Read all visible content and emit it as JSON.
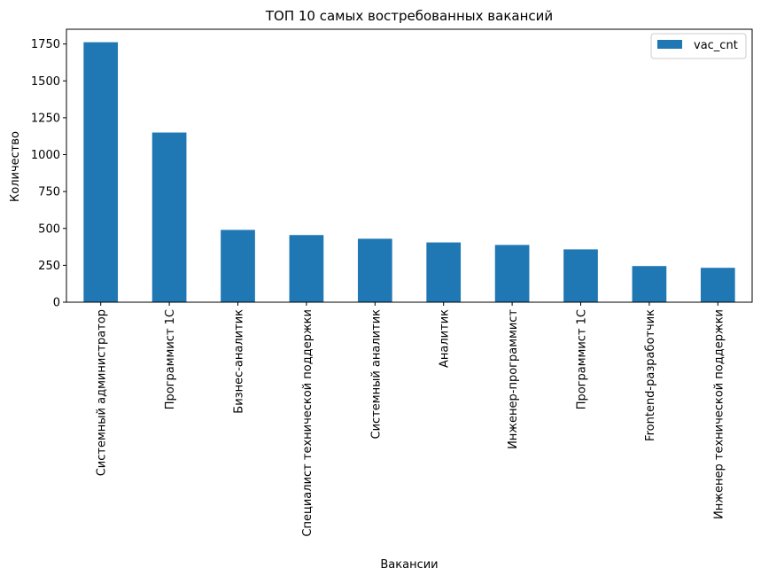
{
  "chart_data": {
    "type": "bar",
    "title": "ТОП 10 самых востребованных вакансий",
    "xlabel": "Вакансии",
    "ylabel": "Количество",
    "categories": [
      "Системный администратор",
      "Программист 1С",
      "Бизнес-аналитик",
      "Специалист технической поддержки",
      "Системный аналитик",
      "Аналитик",
      "Инженер-программист",
      "Программист 1С",
      "Frontend-разработчик",
      "Инженер технической поддержки"
    ],
    "series": [
      {
        "name": "vac_cnt",
        "color": "#1f77b4",
        "values": [
          1762,
          1150,
          490,
          455,
          430,
          405,
          388,
          358,
          245,
          233
        ]
      }
    ],
    "ylim": [
      0,
      1850
    ],
    "yticks": [
      0,
      250,
      500,
      750,
      1000,
      1250,
      1500,
      1750
    ],
    "ytick_labels": [
      "0",
      "250",
      "500",
      "750",
      "1000",
      "1250",
      "1500",
      "1750"
    ],
    "legend": {
      "position": "top-right"
    },
    "grid": false
  }
}
